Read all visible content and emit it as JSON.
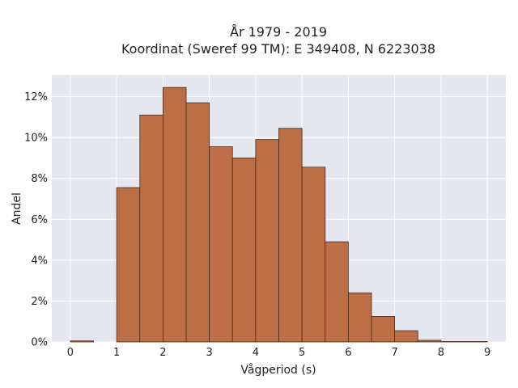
{
  "chart_data": {
    "type": "bar",
    "title": "År 1979 - 2019",
    "subtitle": "Koordinat (Sweref 99 TM): E 349408, N 6223038",
    "xlabel": "Vågperiod (s)",
    "ylabel": "Andel",
    "bin_width": 0.5,
    "bin_starts": [
      0,
      0.5,
      1,
      1.5,
      2,
      2.5,
      3,
      3.5,
      4,
      4.5,
      5,
      5.5,
      6,
      6.5,
      7,
      7.5,
      8,
      8.5
    ],
    "values": [
      0.0005,
      0,
      0.0755,
      0.111,
      0.1245,
      0.117,
      0.0955,
      0.09,
      0.099,
      0.1045,
      0.0855,
      0.049,
      0.024,
      0.0125,
      0.0055,
      0.0008,
      0.0002,
      0.0002
    ],
    "xlim": [
      -0.4,
      9.4
    ],
    "ylim": [
      0,
      0.1305
    ],
    "x_ticks": [
      0,
      1,
      2,
      3,
      4,
      5,
      6,
      7,
      8,
      9
    ],
    "y_ticks": [
      0,
      0.02,
      0.04,
      0.06,
      0.08,
      0.1,
      0.12
    ],
    "y_tick_labels": [
      "0%",
      "2%",
      "4%",
      "6%",
      "8%",
      "10%",
      "12%"
    ],
    "grid": true,
    "bar_color": "#bc6f47",
    "bar_edge_color": "#4a2a1a",
    "plot_background": "#e5e7f0",
    "grid_color": "#ffffff"
  }
}
